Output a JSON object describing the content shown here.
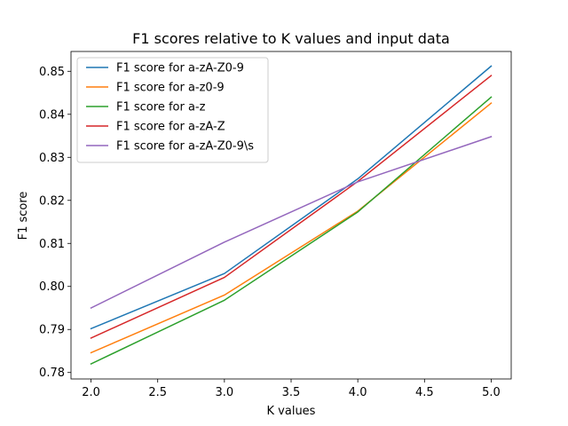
{
  "chart_data": {
    "type": "line",
    "title": "F1 scores relative to K values and input data",
    "xlabel": "K values",
    "ylabel": "F1 score",
    "x": [
      2.0,
      3.0,
      4.0,
      5.0
    ],
    "xlim": [
      1.85,
      5.15
    ],
    "ylim": [
      0.7785,
      0.8546
    ],
    "xticks": [
      2.0,
      2.5,
      3.0,
      3.5,
      4.0,
      4.5,
      5.0
    ],
    "xtick_labels": [
      "2.0",
      "2.5",
      "3.0",
      "3.5",
      "4.0",
      "4.5",
      "5.0"
    ],
    "yticks": [
      0.78,
      0.79,
      0.8,
      0.81,
      0.82,
      0.83,
      0.84,
      0.85
    ],
    "ytick_labels": [
      "0.78",
      "0.79",
      "0.80",
      "0.81",
      "0.82",
      "0.83",
      "0.84",
      "0.85"
    ],
    "grid": false,
    "legend_position": "top-left",
    "series": [
      {
        "name": "F1 score for a-zA-Z0-9",
        "color": "#1f77b4",
        "values": [
          0.7902,
          0.803,
          0.825,
          0.8512
        ]
      },
      {
        "name": "F1 score for a-z0-9",
        "color": "#ff7f0e",
        "values": [
          0.7846,
          0.798,
          0.8175,
          0.8426
        ]
      },
      {
        "name": "F1 score for a-z",
        "color": "#2ca02c",
        "values": [
          0.782,
          0.7968,
          0.8173,
          0.844
        ]
      },
      {
        "name": "F1 score for a-zA-Z",
        "color": "#d62728",
        "values": [
          0.788,
          0.8021,
          0.8244,
          0.849
        ]
      },
      {
        "name": "F1 score for a-zA-Z0-9\\s",
        "color": "#9467bd",
        "values": [
          0.795,
          0.8103,
          0.8243,
          0.8348
        ]
      }
    ]
  }
}
